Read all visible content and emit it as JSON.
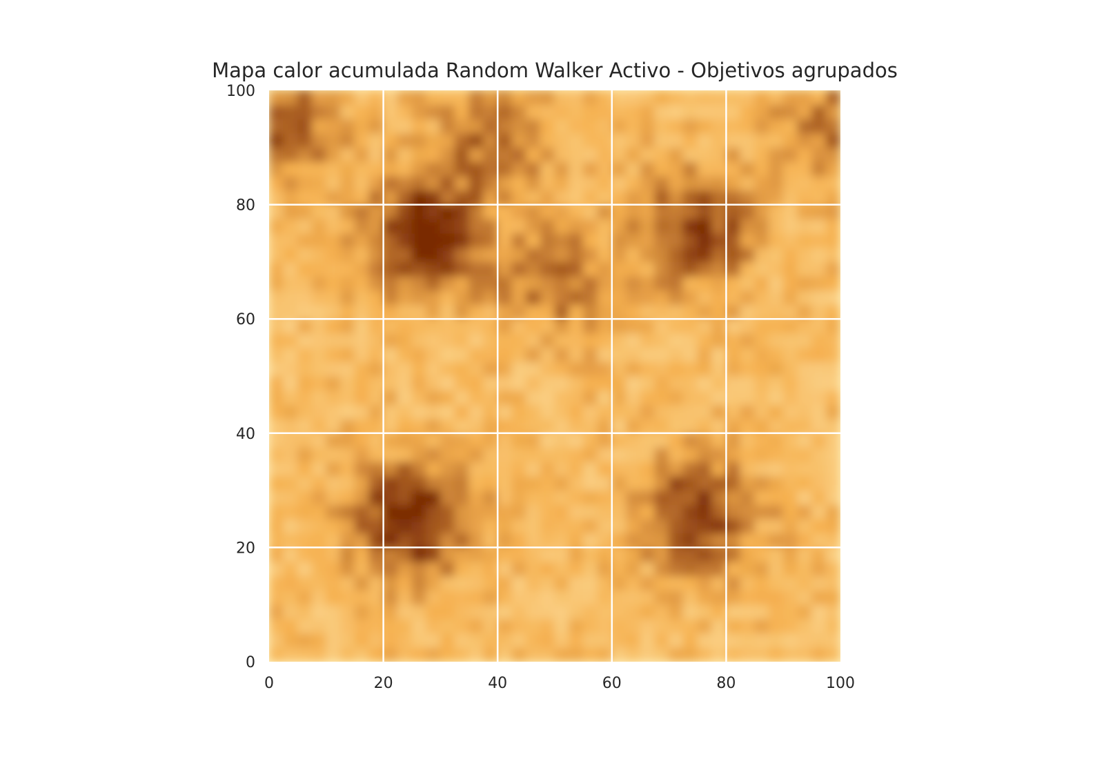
{
  "chart_data": {
    "type": "heatmap",
    "title": "Mapa calor acumulada Random Walker Activo - Objetivos agrupados",
    "xlabel": "",
    "ylabel": "",
    "xlim": [
      0,
      100
    ],
    "ylim": [
      0,
      100
    ],
    "x_ticks": [
      "0",
      "20",
      "40",
      "60",
      "80",
      "100"
    ],
    "y_ticks": [
      "0",
      "20",
      "40",
      "60",
      "80",
      "100"
    ],
    "grid": true,
    "grid_color": "#ffffff",
    "colormap": "YlOrBr",
    "colors": {
      "low": "#fff7c8",
      "mid": "#f6b150",
      "high": "#7a2a06",
      "text": "#262626"
    },
    "hotspots": [
      {
        "x": 27,
        "y": 75,
        "intensity": 1.0
      },
      {
        "x": 25,
        "y": 25,
        "intensity": 1.0
      },
      {
        "x": 75,
        "y": 76,
        "intensity": 0.8
      },
      {
        "x": 75,
        "y": 26,
        "intensity": 0.85
      },
      {
        "x": 50,
        "y": 67,
        "intensity": 0.55
      },
      {
        "x": 3,
        "y": 93,
        "intensity": 0.6
      },
      {
        "x": 40,
        "y": 92,
        "intensity": 0.55
      },
      {
        "x": 99,
        "y": 93,
        "intensity": 0.5
      }
    ]
  }
}
